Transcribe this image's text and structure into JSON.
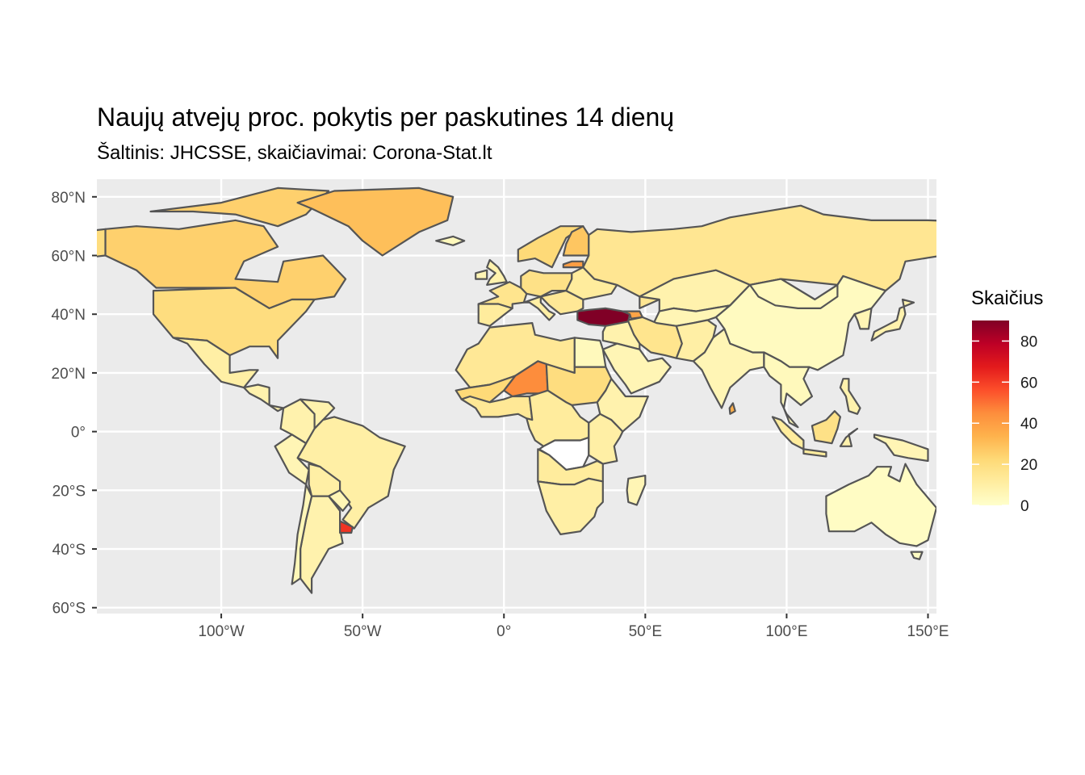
{
  "title": "Naujų atvejų proc. pokytis per paskutines 14 dienų",
  "subtitle": "Šaltinis: JHCSSE, skaičiavimai: Corona-Stat.lt",
  "map": {
    "background": "#ebebeb",
    "grid_color": "#ffffff",
    "border_color": "#555555",
    "lon_range": [
      -144,
      153
    ],
    "lat_range": [
      -62,
      86
    ],
    "lon_ticks": [
      {
        "value": -100,
        "label": "100°W"
      },
      {
        "value": -50,
        "label": "50°W"
      },
      {
        "value": 0,
        "label": "0°"
      },
      {
        "value": 50,
        "label": "50°E"
      },
      {
        "value": 100,
        "label": "100°E"
      },
      {
        "value": 150,
        "label": "150°E"
      }
    ],
    "lat_ticks": [
      {
        "value": 80,
        "label": "80°N"
      },
      {
        "value": 60,
        "label": "60°N"
      },
      {
        "value": 40,
        "label": "40°N"
      },
      {
        "value": 20,
        "label": "20°N"
      },
      {
        "value": 0,
        "label": "0°"
      },
      {
        "value": -20,
        "label": "20°S"
      },
      {
        "value": -40,
        "label": "40°S"
      },
      {
        "value": -60,
        "label": "60°S"
      }
    ]
  },
  "legend": {
    "title": "Skaičius",
    "min": 0,
    "max": 90,
    "breaks": [
      0,
      20,
      40,
      60,
      80
    ],
    "labels": [
      "0",
      "20",
      "40",
      "60",
      "80"
    ],
    "colors": [
      "#ffffcc",
      "#ffeda0",
      "#fed976",
      "#feb24c",
      "#fd8d3c",
      "#fc4e2a",
      "#e31a1c",
      "#bd0026",
      "#800026"
    ]
  },
  "regions": [
    {
      "name": "Turkey",
      "value": 90
    },
    {
      "name": "Uruguay",
      "value": 62
    },
    {
      "name": "Niger",
      "value": 45
    },
    {
      "name": "Latvia",
      "value": 40
    },
    {
      "name": "Sri Lanka",
      "value": 35
    },
    {
      "name": "Greenland",
      "value": 30
    },
    {
      "name": "Canada",
      "value": 25
    },
    {
      "name": "Russia",
      "value": 15
    },
    {
      "name": "United States",
      "value": 20
    },
    {
      "name": "China",
      "value": 3
    },
    {
      "name": "Australia",
      "value": 2
    },
    {
      "name": "Brazil",
      "value": 10
    },
    {
      "name": "Argentina",
      "value": 8
    }
  ]
}
